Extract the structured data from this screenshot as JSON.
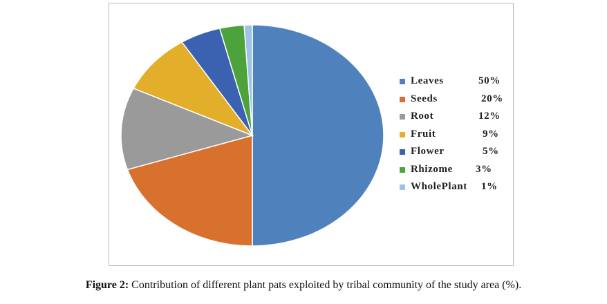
{
  "chart_data": {
    "type": "pie",
    "categories": [
      "Leaves",
      "Seeds",
      "Root",
      "Fruit",
      "Flower",
      "Rhizome",
      "WholePlant"
    ],
    "values": [
      50,
      20,
      12,
      9,
      5,
      3,
      1
    ],
    "value_labels": [
      "50%",
      "20%",
      "12%",
      "9%",
      "5%",
      "3%",
      "1%"
    ],
    "legend_labels": [
      "Leaves",
      "Seeds",
      "Root",
      "Fruit",
      "Flower",
      "Rhizome",
      "WholePlant"
    ],
    "colors": [
      "#4f81bd",
      "#d9712e",
      "#9a9a9a",
      "#e3ae2a",
      "#3b62b0",
      "#4ea23c",
      "#9dc3e6"
    ],
    "legend_position": "right",
    "title": ""
  },
  "caption": {
    "label": "Figure 2:",
    "text": " Contribution of different plant pats exploited by tribal community of the study area (%)."
  }
}
